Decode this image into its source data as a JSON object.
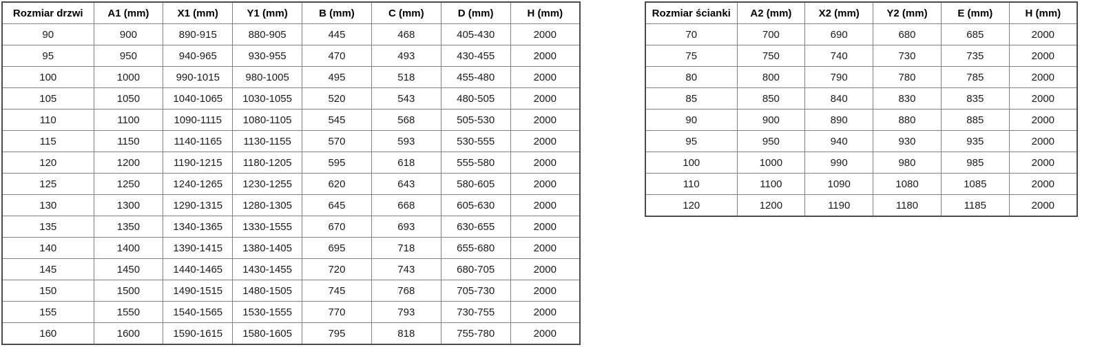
{
  "tables": [
    {
      "name": "door-sizes-table",
      "headers": [
        "Rozmiar drzwi",
        "A1 (mm)",
        "X1 (mm)",
        "Y1 (mm)",
        "B (mm)",
        "C (mm)",
        "D (mm)",
        "H (mm)"
      ],
      "rows": [
        [
          "90",
          "900",
          "890-915",
          "880-905",
          "445",
          "468",
          "405-430",
          "2000"
        ],
        [
          "95",
          "950",
          "940-965",
          "930-955",
          "470",
          "493",
          "430-455",
          "2000"
        ],
        [
          "100",
          "1000",
          "990-1015",
          "980-1005",
          "495",
          "518",
          "455-480",
          "2000"
        ],
        [
          "105",
          "1050",
          "1040-1065",
          "1030-1055",
          "520",
          "543",
          "480-505",
          "2000"
        ],
        [
          "110",
          "1100",
          "1090-1115",
          "1080-1105",
          "545",
          "568",
          "505-530",
          "2000"
        ],
        [
          "115",
          "1150",
          "1140-1165",
          "1130-1155",
          "570",
          "593",
          "530-555",
          "2000"
        ],
        [
          "120",
          "1200",
          "1190-1215",
          "1180-1205",
          "595",
          "618",
          "555-580",
          "2000"
        ],
        [
          "125",
          "1250",
          "1240-1265",
          "1230-1255",
          "620",
          "643",
          "580-605",
          "2000"
        ],
        [
          "130",
          "1300",
          "1290-1315",
          "1280-1305",
          "645",
          "668",
          "605-630",
          "2000"
        ],
        [
          "135",
          "1350",
          "1340-1365",
          "1330-1555",
          "670",
          "693",
          "630-655",
          "2000"
        ],
        [
          "140",
          "1400",
          "1390-1415",
          "1380-1405",
          "695",
          "718",
          "655-680",
          "2000"
        ],
        [
          "145",
          "1450",
          "1440-1465",
          "1430-1455",
          "720",
          "743",
          "680-705",
          "2000"
        ],
        [
          "150",
          "1500",
          "1490-1515",
          "1480-1505",
          "745",
          "768",
          "705-730",
          "2000"
        ],
        [
          "155",
          "1550",
          "1540-1565",
          "1530-1555",
          "770",
          "793",
          "730-755",
          "2000"
        ],
        [
          "160",
          "1600",
          "1590-1615",
          "1580-1605",
          "795",
          "818",
          "755-780",
          "2000"
        ]
      ]
    },
    {
      "name": "wall-sizes-table",
      "headers": [
        "Rozmiar ścianki",
        "A2 (mm)",
        "X2 (mm)",
        "Y2 (mm)",
        "E (mm)",
        "H (mm)"
      ],
      "rows": [
        [
          "70",
          "700",
          "690",
          "680",
          "685",
          "2000"
        ],
        [
          "75",
          "750",
          "740",
          "730",
          "735",
          "2000"
        ],
        [
          "80",
          "800",
          "790",
          "780",
          "785",
          "2000"
        ],
        [
          "85",
          "850",
          "840",
          "830",
          "835",
          "2000"
        ],
        [
          "90",
          "900",
          "890",
          "880",
          "885",
          "2000"
        ],
        [
          "95",
          "950",
          "940",
          "930",
          "935",
          "2000"
        ],
        [
          "100",
          "1000",
          "990",
          "980",
          "985",
          "2000"
        ],
        [
          "110",
          "1100",
          "1090",
          "1080",
          "1085",
          "2000"
        ],
        [
          "120",
          "1200",
          "1190",
          "1180",
          "1185",
          "2000"
        ]
      ]
    }
  ],
  "colors": {
    "background": "#ffffff",
    "border_outer": "#4a4a4a",
    "border_inner": "#808080",
    "text": "#1a1a1a"
  }
}
